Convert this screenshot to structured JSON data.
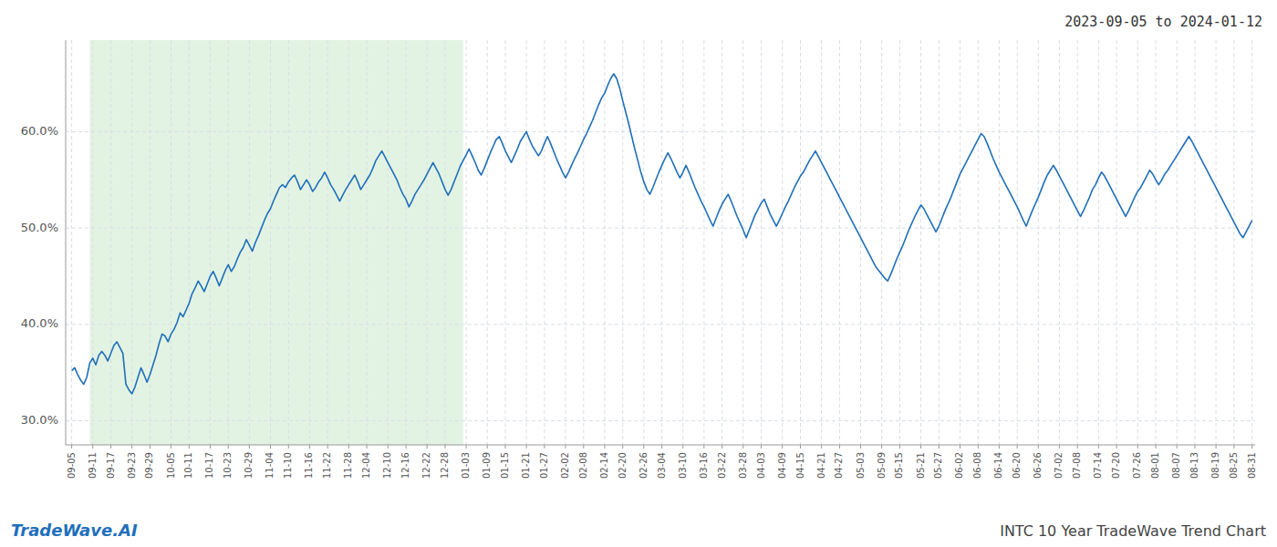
{
  "chart_data": {
    "type": "line",
    "title": "2023-09-05 to 2024-01-12",
    "annotations": [
      "TradeWave.AI",
      "INTC 10 Year TradeWave Trend Chart"
    ],
    "color": "#1f6fba",
    "grid": true,
    "ylim": [
      0.275,
      0.695
    ],
    "yticks": [
      {
        "value": 0.3,
        "label": "30.0%"
      },
      {
        "value": 0.4,
        "label": "40.0%"
      },
      {
        "value": 0.5,
        "label": "50.0%"
      },
      {
        "value": 0.6,
        "label": "60.0%"
      }
    ],
    "shaded_span": {
      "start": 6,
      "end": 130,
      "color": "#d4ecd4"
    },
    "categories": [
      "09-05",
      null,
      null,
      null,
      null,
      null,
      null,
      "09-11",
      null,
      null,
      null,
      null,
      null,
      "09-17",
      null,
      null,
      null,
      null,
      null,
      null,
      "09-23",
      null,
      null,
      null,
      null,
      null,
      "09-29",
      null,
      null,
      null,
      null,
      null,
      null,
      "10-05",
      null,
      null,
      null,
      null,
      null,
      "10-11",
      null,
      null,
      null,
      null,
      null,
      null,
      "10-17",
      null,
      null,
      null,
      null,
      null,
      "10-23",
      null,
      null,
      null,
      null,
      null,
      null,
      "10-29",
      null,
      null,
      null,
      null,
      null,
      null,
      "11-04",
      null,
      null,
      null,
      null,
      null,
      "11-10",
      null,
      null,
      null,
      null,
      null,
      null,
      "11-16",
      null,
      null,
      null,
      null,
      null,
      "11-22",
      null,
      null,
      null,
      null,
      null,
      null,
      "11-28",
      null,
      null,
      null,
      null,
      null,
      "12-04",
      null,
      null,
      null,
      null,
      null,
      null,
      "12-10",
      null,
      null,
      null,
      null,
      null,
      "12-16",
      null,
      null,
      null,
      null,
      null,
      null,
      "12-22",
      null,
      null,
      null,
      null,
      null,
      "12-28",
      null,
      null,
      null,
      null,
      null,
      null,
      "01-03",
      null,
      null,
      null,
      null,
      null,
      null,
      "01-09",
      null,
      null,
      null,
      null,
      null,
      "01-15",
      null,
      null,
      null,
      null,
      null,
      null,
      "01-21",
      null,
      null,
      null,
      null,
      null,
      "01-27",
      null,
      null,
      null,
      null,
      null,
      null,
      "02-02",
      null,
      null,
      null,
      null,
      null,
      "02-08",
      null,
      null,
      null,
      null,
      null,
      null,
      "02-14",
      null,
      null,
      null,
      null,
      null,
      "02-20",
      null,
      null,
      null,
      null,
      null,
      null,
      "02-26",
      null,
      null,
      null,
      null,
      null,
      "03-04",
      null,
      null,
      null,
      null,
      null,
      null,
      "03-10",
      null,
      null,
      null,
      null,
      null,
      null,
      "03-16",
      null,
      null,
      null,
      null,
      null,
      "03-22",
      null,
      null,
      null,
      null,
      null,
      null,
      "03-28",
      null,
      null,
      null,
      null,
      null,
      "04-03",
      null,
      null,
      null,
      null,
      null,
      null,
      "04-09",
      null,
      null,
      null,
      null,
      null,
      "04-15",
      null,
      null,
      null,
      null,
      null,
      null,
      "04-21",
      null,
      null,
      null,
      null,
      null,
      "04-27",
      null,
      null,
      null,
      null,
      null,
      null,
      "05-03",
      null,
      null,
      null,
      null,
      null,
      null,
      "05-09",
      null,
      null,
      null,
      null,
      null,
      "05-15",
      null,
      null,
      null,
      null,
      null,
      null,
      "05-21",
      null,
      null,
      null,
      null,
      null,
      "05-27",
      null,
      null,
      null,
      null,
      null,
      null,
      "06-02",
      null,
      null,
      null,
      null,
      null,
      "06-08",
      null,
      null,
      null,
      null,
      null,
      null,
      "06-14",
      null,
      null,
      null,
      null,
      null,
      "06-20",
      null,
      null,
      null,
      null,
      null,
      null,
      "06-26",
      null,
      null,
      null,
      null,
      null,
      null,
      "07-02",
      null,
      null,
      null,
      null,
      null,
      "07-08",
      null,
      null,
      null,
      null,
      null,
      null,
      "07-14",
      null,
      null,
      null,
      null,
      null,
      "07-20",
      null,
      null,
      null,
      null,
      null,
      null,
      "07-26",
      null,
      null,
      null,
      null,
      null,
      "08-01",
      null,
      null,
      null,
      null,
      null,
      null,
      "08-07",
      null,
      null,
      null,
      null,
      null,
      "08-13",
      null,
      null,
      null,
      null,
      null,
      null,
      "08-19",
      null,
      null,
      null,
      null,
      null,
      "08-25",
      null,
      null,
      null,
      null,
      null,
      "08-31"
    ],
    "values": [
      0.352,
      0.355,
      0.348,
      0.342,
      0.338,
      0.345,
      0.36,
      0.365,
      0.358,
      0.368,
      0.372,
      0.368,
      0.362,
      0.37,
      0.378,
      0.382,
      0.376,
      0.37,
      0.338,
      0.332,
      0.328,
      0.335,
      0.345,
      0.355,
      0.348,
      0.34,
      0.348,
      0.358,
      0.368,
      0.38,
      0.39,
      0.388,
      0.382,
      0.39,
      0.395,
      0.402,
      0.412,
      0.408,
      0.415,
      0.422,
      0.432,
      0.438,
      0.445,
      0.44,
      0.434,
      0.442,
      0.45,
      0.455,
      0.448,
      0.44,
      0.448,
      0.456,
      0.462,
      0.455,
      0.46,
      0.468,
      0.475,
      0.48,
      0.488,
      0.482,
      0.476,
      0.485,
      0.492,
      0.5,
      0.508,
      0.515,
      0.52,
      0.528,
      0.535,
      0.542,
      0.545,
      0.542,
      0.548,
      0.552,
      0.555,
      0.548,
      0.54,
      0.545,
      0.55,
      0.545,
      0.538,
      0.542,
      0.548,
      0.552,
      0.558,
      0.552,
      0.545,
      0.54,
      0.534,
      0.528,
      0.534,
      0.54,
      0.545,
      0.55,
      0.555,
      0.548,
      0.54,
      0.545,
      0.55,
      0.555,
      0.562,
      0.57,
      0.575,
      0.58,
      0.574,
      0.568,
      0.562,
      0.556,
      0.55,
      0.542,
      0.535,
      0.53,
      0.522,
      0.528,
      0.535,
      0.54,
      0.545,
      0.55,
      0.556,
      0.562,
      0.568,
      0.562,
      0.556,
      0.548,
      0.54,
      0.534,
      0.54,
      0.548,
      0.556,
      0.564,
      0.57,
      0.576,
      0.582,
      0.575,
      0.568,
      0.56,
      0.555,
      0.562,
      0.57,
      0.578,
      0.585,
      0.592,
      0.595,
      0.588,
      0.58,
      0.574,
      0.568,
      0.575,
      0.582,
      0.59,
      0.595,
      0.6,
      0.592,
      0.585,
      0.58,
      0.575,
      0.58,
      0.588,
      0.595,
      0.588,
      0.58,
      0.572,
      0.565,
      0.558,
      0.552,
      0.558,
      0.565,
      0.572,
      0.578,
      0.585,
      0.592,
      0.598,
      0.605,
      0.612,
      0.62,
      0.628,
      0.635,
      0.64,
      0.648,
      0.655,
      0.66,
      0.655,
      0.645,
      0.632,
      0.62,
      0.608,
      0.595,
      0.582,
      0.57,
      0.558,
      0.548,
      0.54,
      0.535,
      0.542,
      0.55,
      0.558,
      0.565,
      0.572,
      0.578,
      0.572,
      0.565,
      0.558,
      0.552,
      0.558,
      0.565,
      0.558,
      0.55,
      0.542,
      0.535,
      0.528,
      0.522,
      0.515,
      0.508,
      0.502,
      0.51,
      0.518,
      0.525,
      0.53,
      0.535,
      0.528,
      0.52,
      0.512,
      0.505,
      0.498,
      0.49,
      0.498,
      0.506,
      0.514,
      0.52,
      0.526,
      0.53,
      0.522,
      0.514,
      0.508,
      0.502,
      0.508,
      0.515,
      0.522,
      0.528,
      0.535,
      0.542,
      0.548,
      0.554,
      0.558,
      0.564,
      0.57,
      0.575,
      0.58,
      0.574,
      0.568,
      0.562,
      0.556,
      0.55,
      0.544,
      0.538,
      0.532,
      0.526,
      0.52,
      0.514,
      0.508,
      0.502,
      0.496,
      0.49,
      0.484,
      0.478,
      0.472,
      0.466,
      0.46,
      0.456,
      0.452,
      0.448,
      0.445,
      0.452,
      0.46,
      0.468,
      0.475,
      0.482,
      0.49,
      0.498,
      0.505,
      0.512,
      0.518,
      0.524,
      0.52,
      0.514,
      0.508,
      0.502,
      0.496,
      0.502,
      0.51,
      0.518,
      0.525,
      0.532,
      0.54,
      0.548,
      0.556,
      0.562,
      0.568,
      0.574,
      0.58,
      0.586,
      0.592,
      0.598,
      0.595,
      0.588,
      0.58,
      0.572,
      0.565,
      0.558,
      0.552,
      0.546,
      0.54,
      0.534,
      0.528,
      0.522,
      0.515,
      0.508,
      0.502,
      0.51,
      0.518,
      0.525,
      0.532,
      0.54,
      0.548,
      0.555,
      0.56,
      0.565,
      0.56,
      0.554,
      0.548,
      0.542,
      0.536,
      0.53,
      0.524,
      0.518,
      0.512,
      0.518,
      0.525,
      0.532,
      0.54,
      0.545,
      0.552,
      0.558,
      0.554,
      0.548,
      0.542,
      0.536,
      0.53,
      0.524,
      0.518,
      0.512,
      0.518,
      0.525,
      0.532,
      0.538,
      0.542,
      0.548,
      0.554,
      0.56,
      0.556,
      0.55,
      0.545,
      0.55,
      0.556,
      0.56,
      0.565,
      0.57,
      0.575,
      0.58,
      0.585,
      0.59,
      0.595,
      0.59,
      0.584,
      0.578,
      0.572,
      0.566,
      0.56,
      0.554,
      0.548,
      0.542,
      0.536,
      0.53,
      0.524,
      0.518,
      0.512,
      0.506,
      0.5,
      0.494,
      0.49,
      0.496,
      0.502,
      0.508
    ]
  }
}
